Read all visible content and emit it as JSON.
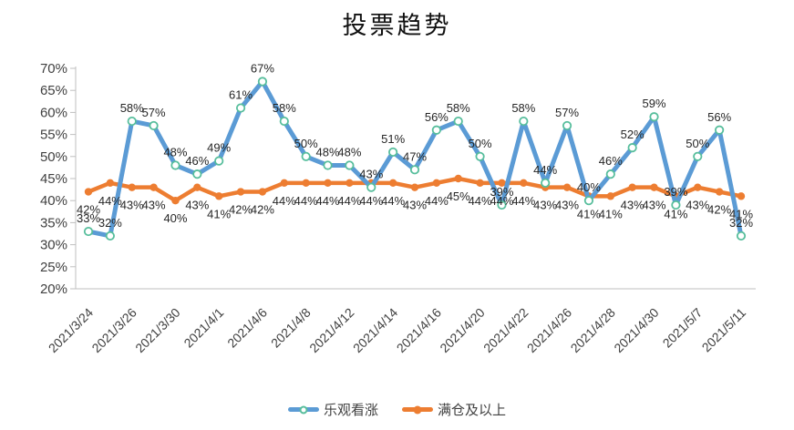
{
  "title": "投票趋势",
  "colors": {
    "optimistic_line": "#5B9BD5",
    "optimistic_marker_ring": "#57BE9C",
    "optimistic_marker_fill": "#FFFFFF",
    "full_position_line": "#ED7D31",
    "axis_line": "#BFBFBF",
    "axis_text": "#404040",
    "data_label_text": "#262626"
  },
  "chart_data": {
    "type": "line",
    "title": "投票趋势",
    "grid": false,
    "legend_position": "bottom",
    "ylim": [
      20,
      70
    ],
    "y_tick_step": 5,
    "y_tick_suffix": "%",
    "n_points": 31,
    "x_tick_every": 2,
    "x_tick_labels": [
      "2021/3/24",
      "2021/3/26",
      "2021/3/30",
      "2021/4/1",
      "2021/4/6",
      "2021/4/8",
      "2021/4/12",
      "2021/4/14",
      "2021/4/16",
      "2021/4/20",
      "2021/4/22",
      "2021/4/26",
      "2021/4/28",
      "2021/4/30",
      "2021/5/7",
      "2021/5/11"
    ],
    "series": [
      {
        "name": "乐观看涨",
        "color": "#5B9BD5",
        "marker": "open-circle",
        "marker_stroke": "#57BE9C",
        "marker_fill": "#FFFFFF",
        "label_position": "above",
        "label_suffix": "%",
        "values": [
          33,
          32,
          58,
          57,
          48,
          46,
          49,
          61,
          67,
          58,
          50,
          48,
          48,
          43,
          51,
          47,
          56,
          58,
          50,
          39,
          58,
          44,
          57,
          40,
          46,
          52,
          59,
          39,
          50,
          56,
          32
        ]
      },
      {
        "name": "满仓及以上",
        "color": "#ED7D31",
        "marker": "filled-circle",
        "label_position": "below",
        "label_suffix": "%",
        "values": [
          42,
          44,
          43,
          43,
          40,
          43,
          41,
          42,
          42,
          44,
          44,
          44,
          44,
          44,
          44,
          43,
          44,
          45,
          44,
          44,
          44,
          43,
          43,
          41,
          41,
          43,
          43,
          41,
          43,
          42,
          41
        ]
      }
    ]
  }
}
